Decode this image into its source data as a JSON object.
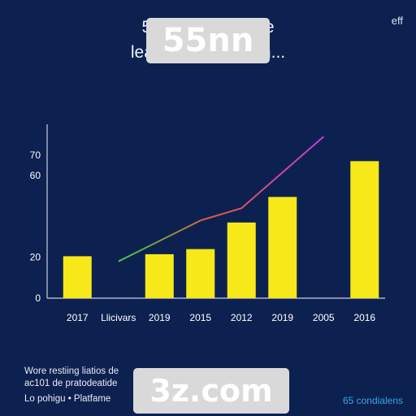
{
  "header": {
    "title_line_1": "55fn do                              e affeone",
    "title_line_2": "leans al er                              tatiform...",
    "corner_mark": "eff"
  },
  "watermarks": {
    "top": "55nn",
    "bottom": "3z.com"
  },
  "footer": {
    "line_1": "Wore restiing liatios de",
    "line_2": "ac101 de pratodeatide",
    "line_3": "Lo pohigu • Platfame",
    "right": "65 condialens"
  },
  "colors": {
    "background": "#0d2150",
    "bar": "#f7e81a",
    "axis": "#c8d0e0"
  },
  "chart_data": {
    "type": "bar",
    "categories": [
      "2017",
      "Llicivars",
      "2019",
      "2015",
      "2012",
      "2019",
      "2005",
      "2016"
    ],
    "values": [
      20.5,
      0,
      21.5,
      24,
      37,
      49.5,
      0,
      67
    ],
    "yticks": [
      0,
      20,
      60,
      70
    ],
    "ylim": [
      0,
      85
    ],
    "grid": false,
    "trend": {
      "x": [
        1.5,
        2.5,
        3.5,
        4.5,
        6.5
      ],
      "y": [
        18,
        28,
        38,
        44,
        79
      ]
    }
  }
}
